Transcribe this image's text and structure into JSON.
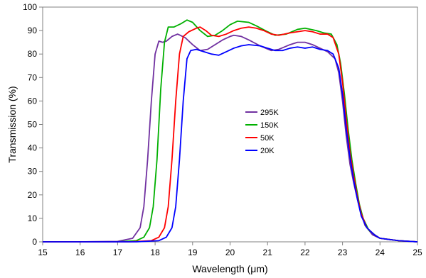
{
  "chart_data": {
    "type": "line",
    "xlabel": "Wavelength (μm)",
    "ylabel": "Transmission (%)",
    "xlim": [
      15,
      25
    ],
    "ylim": [
      0,
      100
    ],
    "x_ticks": [
      15,
      16,
      17,
      18,
      19,
      20,
      21,
      22,
      23,
      24,
      25
    ],
    "y_ticks": [
      0,
      10,
      20,
      30,
      40,
      50,
      60,
      70,
      80,
      90,
      100
    ],
    "grid": false,
    "legend_position": "center",
    "series": [
      {
        "name": "295K",
        "color": "#7030a0",
        "points": [
          [
            15,
            0
          ],
          [
            16,
            0
          ],
          [
            17,
            0.2
          ],
          [
            17.4,
            1.5
          ],
          [
            17.6,
            6
          ],
          [
            17.7,
            15
          ],
          [
            17.8,
            35
          ],
          [
            17.9,
            60
          ],
          [
            18.0,
            80
          ],
          [
            18.1,
            85.5
          ],
          [
            18.2,
            85
          ],
          [
            18.3,
            85.5
          ],
          [
            18.45,
            87.5
          ],
          [
            18.6,
            88.5
          ],
          [
            18.8,
            87
          ],
          [
            19.0,
            84
          ],
          [
            19.2,
            81.5
          ],
          [
            19.4,
            82
          ],
          [
            19.6,
            84
          ],
          [
            19.8,
            86
          ],
          [
            20.0,
            87.5
          ],
          [
            20.1,
            88
          ],
          [
            20.3,
            87.5
          ],
          [
            20.5,
            86
          ],
          [
            20.8,
            83.5
          ],
          [
            21.1,
            81.5
          ],
          [
            21.3,
            82
          ],
          [
            21.6,
            84
          ],
          [
            21.8,
            85
          ],
          [
            22.0,
            85
          ],
          [
            22.2,
            84
          ],
          [
            22.4,
            82.5
          ],
          [
            22.6,
            81
          ],
          [
            22.8,
            78
          ],
          [
            22.9,
            72
          ],
          [
            23.0,
            60
          ],
          [
            23.1,
            45
          ],
          [
            23.2,
            33
          ],
          [
            23.3,
            25
          ],
          [
            23.4,
            18
          ],
          [
            23.5,
            12
          ],
          [
            23.6,
            7
          ],
          [
            23.8,
            3
          ],
          [
            24.0,
            1.5
          ],
          [
            24.5,
            0.5
          ],
          [
            25,
            0
          ]
        ]
      },
      {
        "name": "150K",
        "color": "#00b000",
        "points": [
          [
            15,
            0
          ],
          [
            17,
            0
          ],
          [
            17.5,
            0.5
          ],
          [
            17.7,
            2
          ],
          [
            17.85,
            6
          ],
          [
            17.95,
            15
          ],
          [
            18.05,
            35
          ],
          [
            18.15,
            65
          ],
          [
            18.25,
            85
          ],
          [
            18.35,
            91.5
          ],
          [
            18.5,
            91.5
          ],
          [
            18.7,
            93
          ],
          [
            18.85,
            94.5
          ],
          [
            19.0,
            93.5
          ],
          [
            19.2,
            90
          ],
          [
            19.4,
            87.5
          ],
          [
            19.6,
            88
          ],
          [
            19.8,
            90
          ],
          [
            20.0,
            92.5
          ],
          [
            20.2,
            94
          ],
          [
            20.5,
            93.5
          ],
          [
            20.7,
            92
          ],
          [
            21.0,
            89.5
          ],
          [
            21.2,
            88
          ],
          [
            21.5,
            88.5
          ],
          [
            21.8,
            90.5
          ],
          [
            22.0,
            91
          ],
          [
            22.3,
            90
          ],
          [
            22.5,
            89
          ],
          [
            22.7,
            88.5
          ],
          [
            22.85,
            84
          ],
          [
            22.95,
            76
          ],
          [
            23.05,
            63
          ],
          [
            23.15,
            48
          ],
          [
            23.25,
            35
          ],
          [
            23.35,
            25
          ],
          [
            23.45,
            16
          ],
          [
            23.55,
            10
          ],
          [
            23.7,
            5
          ],
          [
            23.9,
            2.5
          ],
          [
            24.0,
            1.5
          ],
          [
            24.5,
            0.5
          ],
          [
            25,
            0
          ]
        ]
      },
      {
        "name": "50K",
        "color": "#ff0000",
        "points": [
          [
            15,
            0
          ],
          [
            17.3,
            0
          ],
          [
            17.9,
            0.5
          ],
          [
            18.1,
            2
          ],
          [
            18.25,
            6
          ],
          [
            18.35,
            15
          ],
          [
            18.45,
            35
          ],
          [
            18.55,
            60
          ],
          [
            18.65,
            80
          ],
          [
            18.75,
            87.5
          ],
          [
            18.9,
            89.5
          ],
          [
            19.1,
            91
          ],
          [
            19.2,
            91.5
          ],
          [
            19.35,
            90
          ],
          [
            19.5,
            88
          ],
          [
            19.7,
            87.5
          ],
          [
            19.9,
            88.5
          ],
          [
            20.1,
            90
          ],
          [
            20.3,
            91
          ],
          [
            20.5,
            91.5
          ],
          [
            20.7,
            91
          ],
          [
            20.9,
            90
          ],
          [
            21.1,
            88.5
          ],
          [
            21.3,
            88
          ],
          [
            21.6,
            89
          ],
          [
            21.8,
            89.5
          ],
          [
            22.0,
            90
          ],
          [
            22.2,
            89.5
          ],
          [
            22.4,
            88.5
          ],
          [
            22.6,
            88.5
          ],
          [
            22.75,
            87
          ],
          [
            22.9,
            80
          ],
          [
            23.0,
            68
          ],
          [
            23.1,
            52
          ],
          [
            23.2,
            38
          ],
          [
            23.3,
            28
          ],
          [
            23.4,
            19
          ],
          [
            23.5,
            12
          ],
          [
            23.65,
            6
          ],
          [
            23.85,
            3
          ],
          [
            24.0,
            1.5
          ],
          [
            24.5,
            0.5
          ],
          [
            25,
            0
          ]
        ]
      },
      {
        "name": "20K",
        "color": "#0000ff",
        "points": [
          [
            15,
            0
          ],
          [
            17.5,
            0
          ],
          [
            18.1,
            0.5
          ],
          [
            18.3,
            2
          ],
          [
            18.45,
            6
          ],
          [
            18.55,
            15
          ],
          [
            18.65,
            35
          ],
          [
            18.75,
            60
          ],
          [
            18.85,
            78
          ],
          [
            18.95,
            81.5
          ],
          [
            19.1,
            82
          ],
          [
            19.3,
            81
          ],
          [
            19.5,
            80
          ],
          [
            19.7,
            79.5
          ],
          [
            19.9,
            81
          ],
          [
            20.1,
            82.5
          ],
          [
            20.3,
            83.5
          ],
          [
            20.5,
            84
          ],
          [
            20.8,
            83.5
          ],
          [
            21.0,
            82.5
          ],
          [
            21.2,
            81.5
          ],
          [
            21.4,
            81.5
          ],
          [
            21.6,
            82.5
          ],
          [
            21.8,
            83
          ],
          [
            22.0,
            82.5
          ],
          [
            22.2,
            83
          ],
          [
            22.4,
            82
          ],
          [
            22.6,
            81.5
          ],
          [
            22.75,
            80
          ],
          [
            22.9,
            74
          ],
          [
            23.0,
            63
          ],
          [
            23.1,
            48
          ],
          [
            23.2,
            36
          ],
          [
            23.3,
            26
          ],
          [
            23.4,
            18
          ],
          [
            23.5,
            11
          ],
          [
            23.65,
            6
          ],
          [
            23.85,
            3
          ],
          [
            24.0,
            1.5
          ],
          [
            24.5,
            0.5
          ],
          [
            25,
            0
          ]
        ]
      }
    ]
  }
}
